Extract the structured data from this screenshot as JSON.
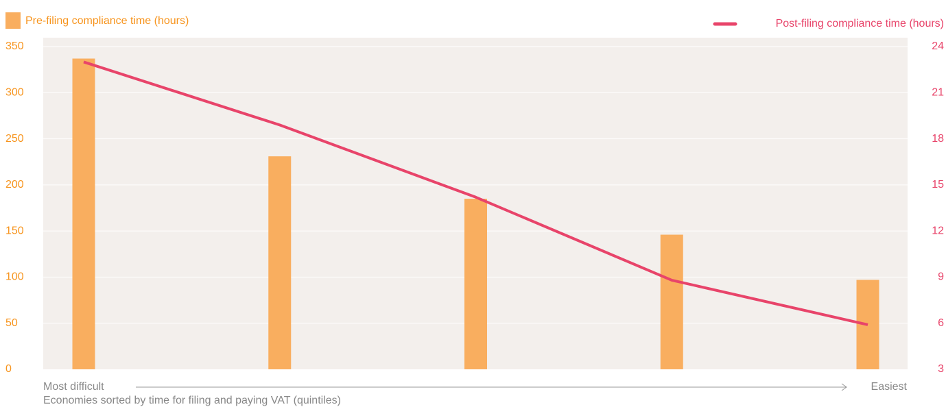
{
  "chart_data": {
    "type": "bar",
    "categories": [
      null,
      null,
      null,
      null,
      null
    ],
    "series": [
      {
        "name": "Pre-filing compliance time (hours)",
        "type": "bar",
        "color": "#f9ae5f",
        "values": [
          337,
          231,
          185,
          146,
          97
        ]
      },
      {
        "name": "Post-filing compliance time (hours)",
        "type": "line",
        "axis": "y2",
        "color": "#e8446a",
        "values": [
          23.0,
          18.9,
          14.2,
          8.8,
          5.9
        ]
      }
    ],
    "ylim": [
      0,
      350
    ],
    "yticks": [
      0,
      50,
      100,
      150,
      200,
      250,
      300,
      350
    ],
    "y2lim": [
      3,
      24
    ],
    "y2ticks": [
      3,
      6,
      9,
      12,
      15,
      18,
      21,
      24
    ],
    "grid": true,
    "x_start_label": "Most difficult",
    "x_end_label": "Easiest",
    "x_label": "Economies sorted by time for filing and paying VAT (quintiles)"
  }
}
